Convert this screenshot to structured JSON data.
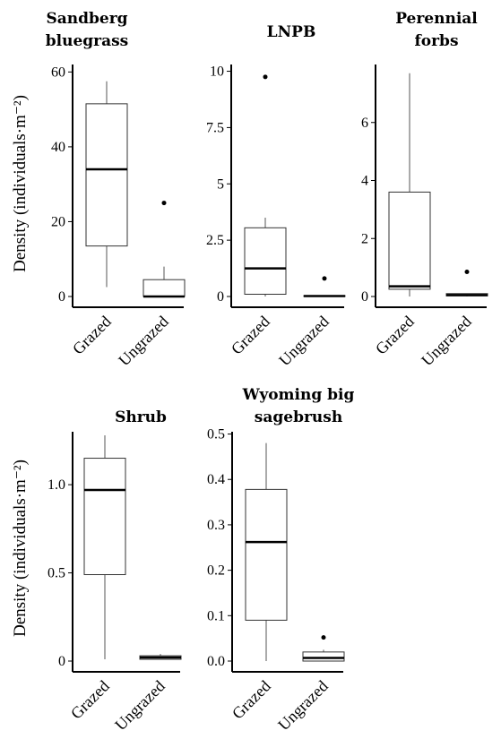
{
  "chart_data": [
    {
      "type": "box",
      "title": [
        "Sandberg",
        "bluegrass"
      ],
      "ylabel": "Density (individuals·m⁻²)",
      "ylim": [
        0,
        62
      ],
      "yticks": [
        0,
        20,
        40,
        60
      ],
      "ytick_labels": [
        "0",
        "20",
        "40",
        "60"
      ],
      "categories": [
        "Grazed",
        "Ungrazed"
      ],
      "boxes": [
        {
          "whisker_low": 2.5,
          "q1": 13.5,
          "median": 34,
          "q3": 51.5,
          "whisker_high": 57.5,
          "outliers": []
        },
        {
          "whisker_low": 0,
          "q1": 0,
          "median": 0,
          "q3": 4.5,
          "whisker_high": 8,
          "outliers": [
            25
          ]
        }
      ]
    },
    {
      "type": "box",
      "title": [
        "LNPB"
      ],
      "ylabel": "",
      "ylim": [
        0,
        10.3
      ],
      "yticks": [
        0,
        2.5,
        5,
        7.5,
        10
      ],
      "ytick_labels": [
        "0",
        "2.5",
        "5",
        "7.5",
        "10"
      ],
      "categories": [
        "Grazed",
        "Ungrazed"
      ],
      "boxes": [
        {
          "whisker_low": 0,
          "q1": 0.1,
          "median": 1.25,
          "q3": 3.05,
          "whisker_high": 3.5,
          "outliers": [
            9.75
          ]
        },
        {
          "whisker_low": 0,
          "q1": 0,
          "median": 0.02,
          "q3": 0.04,
          "whisker_high": 0.04,
          "outliers": [
            0.8
          ]
        }
      ]
    },
    {
      "type": "box",
      "title": [
        "Perennial",
        "forbs"
      ],
      "ylabel": "",
      "ylim": [
        0,
        8.0
      ],
      "yticks": [
        0,
        2,
        4,
        6
      ],
      "ytick_labels": [
        "0",
        "2",
        "4",
        "6"
      ],
      "categories": [
        "Grazed",
        "Ungrazed"
      ],
      "boxes": [
        {
          "whisker_low": 0,
          "q1": 0.25,
          "median": 0.35,
          "q3": 3.6,
          "whisker_high": 7.7,
          "outliers": []
        },
        {
          "whisker_low": 0,
          "q1": 0.02,
          "median": 0.05,
          "q3": 0.1,
          "whisker_high": 0.1,
          "outliers": [
            0.85
          ]
        }
      ]
    },
    {
      "type": "box",
      "title": [
        "Shrub"
      ],
      "ylabel": "Density (individuals·m⁻²)",
      "ylim": [
        0,
        1.3
      ],
      "yticks": [
        0,
        0.5,
        1.0
      ],
      "ytick_labels": [
        "0",
        "0.5",
        "1.0"
      ],
      "categories": [
        "Grazed",
        "Ungrazed"
      ],
      "boxes": [
        {
          "whisker_low": 0.01,
          "q1": 0.49,
          "median": 0.97,
          "q3": 1.15,
          "whisker_high": 1.28,
          "outliers": []
        },
        {
          "whisker_low": 0.01,
          "q1": 0.01,
          "median": 0.02,
          "q3": 0.03,
          "whisker_high": 0.04,
          "outliers": []
        }
      ]
    },
    {
      "type": "box",
      "title": [
        "Wyoming big",
        "sagebrush"
      ],
      "ylabel": "",
      "ylim": [
        0,
        0.505
      ],
      "yticks": [
        0,
        0.1,
        0.2,
        0.3,
        0.4,
        0.5
      ],
      "ytick_labels": [
        "0.0",
        "0.1",
        "0.2",
        "0.3",
        "0.4",
        "0.5"
      ],
      "categories": [
        "Grazed",
        "Ungrazed"
      ],
      "boxes": [
        {
          "whisker_low": 0,
          "q1": 0.09,
          "median": 0.262,
          "q3": 0.378,
          "whisker_high": 0.48,
          "outliers": []
        },
        {
          "whisker_low": 0,
          "q1": 0,
          "median": 0.007,
          "q3": 0.02,
          "whisker_high": 0.025,
          "outliers": [
            0.052
          ]
        }
      ]
    }
  ]
}
